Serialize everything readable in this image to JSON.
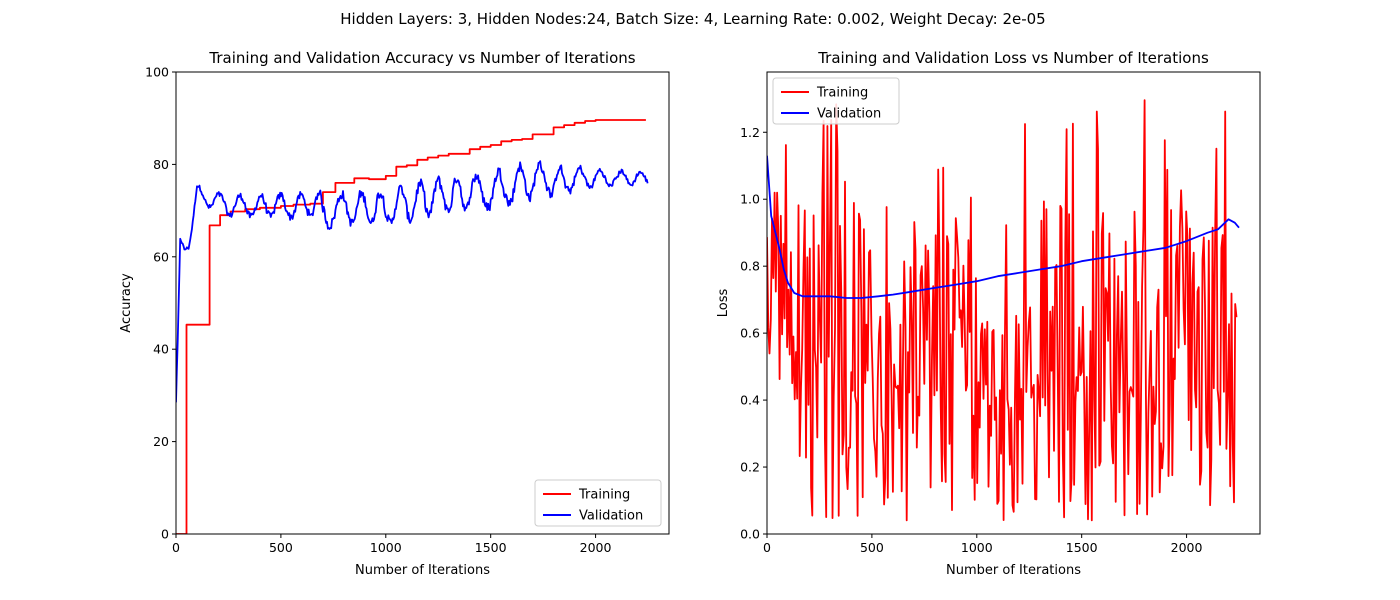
{
  "suptitle": "Hidden Layers: 3, Hidden Nodes:24, Batch Size: 4, Learning Rate: 0.002, Weight Decay: 2e-05",
  "colors": {
    "training": "#ff0000",
    "validation": "#0000ff"
  },
  "chart_data": [
    {
      "type": "line",
      "title": "Training and Validation Accuracy vs Number of Iterations",
      "xlabel": "Number of Iterations",
      "ylabel": "Accuracy",
      "xlim": [
        0,
        2350
      ],
      "ylim": [
        0,
        100
      ],
      "xticks": [
        0,
        500,
        1000,
        1500,
        2000
      ],
      "yticks": [
        0,
        20,
        40,
        60,
        80,
        100
      ],
      "grid": false,
      "legend": {
        "position": "lower-right",
        "entries": [
          "Training",
          "Validation"
        ]
      },
      "series": [
        {
          "name": "Training",
          "color": "#ff0000",
          "step": true,
          "x": [
            0,
            50,
            100,
            160,
            210,
            260,
            330,
            400,
            500,
            560,
            640,
            700,
            760,
            850,
            920,
            1000,
            1050,
            1100,
            1150,
            1200,
            1250,
            1300,
            1400,
            1450,
            1500,
            1550,
            1600,
            1650,
            1700,
            1800,
            1850,
            1900,
            1950,
            2000,
            2050,
            2100,
            2150,
            2240
          ],
          "values": [
            0,
            45.3,
            45.3,
            66.8,
            69.0,
            69.8,
            70.3,
            70.6,
            71.0,
            71.3,
            71.5,
            74.0,
            76.0,
            77.0,
            76.8,
            77.5,
            79.5,
            79.8,
            81.0,
            81.5,
            81.9,
            82.3,
            83.3,
            83.8,
            84.2,
            85.0,
            85.3,
            85.5,
            86.5,
            88.0,
            88.5,
            89.0,
            89.4,
            89.6,
            89.6,
            89.6,
            89.6,
            89.6
          ]
        },
        {
          "name": "Validation",
          "color": "#0000ff",
          "envelope": {
            "x": [
              0,
              10,
              20,
              40,
              60,
              80,
              100,
              130,
              160,
              200,
              260,
              330,
              400,
              500,
              600,
              680,
              700,
              800,
              900,
              1000,
              1100,
              1200,
              1300,
              1400,
              1500,
              1600,
              1700,
              1800,
              1900,
              2000,
              2100,
              2200,
              2250
            ],
            "center": [
              28.5,
              45,
              63,
              61.5,
              63.5,
              68,
              74,
              73,
              72.5,
              71.5,
              71,
              71,
              71,
              71,
              71,
              71.5,
              69.5,
              70.5,
              70.5,
              70.5,
              71.5,
              72.5,
              73.5,
              73.5,
              74.5,
              75.5,
              76.5,
              76.5,
              76.8,
              77,
              77,
              77,
              77
            ],
            "amplitude": [
              0,
              0,
              1,
              1,
              1.5,
              1.5,
              1.5,
              1.5,
              1.8,
              2,
              2.2,
              2.2,
              2.3,
              2.4,
              2.5,
              2.8,
              3.2,
              3.2,
              3.2,
              3.4,
              3.6,
              3.6,
              3.6,
              3.6,
              3.8,
              3.8,
              3.6,
              3.0,
              2.5,
              1.8,
              1.6,
              1.4,
              1.2
            ]
          }
        }
      ]
    },
    {
      "type": "line",
      "title": "Training and Validation Loss vs Number of Iterations",
      "xlabel": "Number of Iterations",
      "ylabel": "Loss",
      "xlim": [
        0,
        2350
      ],
      "ylim": [
        0,
        1.38
      ],
      "xticks": [
        0,
        500,
        1000,
        1500,
        2000
      ],
      "yticks": [
        0.0,
        0.2,
        0.4,
        0.6,
        0.8,
        1.0,
        1.2
      ],
      "ytick_labels": [
        "0.0",
        "0.2",
        "0.4",
        "0.6",
        "0.8",
        "1.0",
        "1.2"
      ],
      "grid": false,
      "legend": {
        "position": "upper-left",
        "entries": [
          "Training",
          "Validation"
        ]
      },
      "series": [
        {
          "name": "Training",
          "color": "#ff0000",
          "noisy": {
            "from": 0,
            "to": 2240,
            "mean": 0.62,
            "low_min": 0.04,
            "high_max": 1.3
          }
        },
        {
          "name": "Validation",
          "color": "#0000ff",
          "x": [
            0,
            20,
            40,
            60,
            80,
            100,
            130,
            170,
            230,
            300,
            380,
            450,
            530,
            600,
            700,
            800,
            900,
            1000,
            1100,
            1200,
            1300,
            1400,
            1500,
            1600,
            1700,
            1800,
            1900,
            2000,
            2100,
            2150,
            2200,
            2230,
            2250
          ],
          "values": [
            1.13,
            0.95,
            0.9,
            0.85,
            0.79,
            0.75,
            0.72,
            0.71,
            0.71,
            0.71,
            0.705,
            0.705,
            0.71,
            0.715,
            0.725,
            0.735,
            0.745,
            0.755,
            0.77,
            0.78,
            0.79,
            0.8,
            0.815,
            0.825,
            0.835,
            0.845,
            0.855,
            0.875,
            0.9,
            0.91,
            0.94,
            0.93,
            0.915
          ]
        }
      ]
    }
  ]
}
